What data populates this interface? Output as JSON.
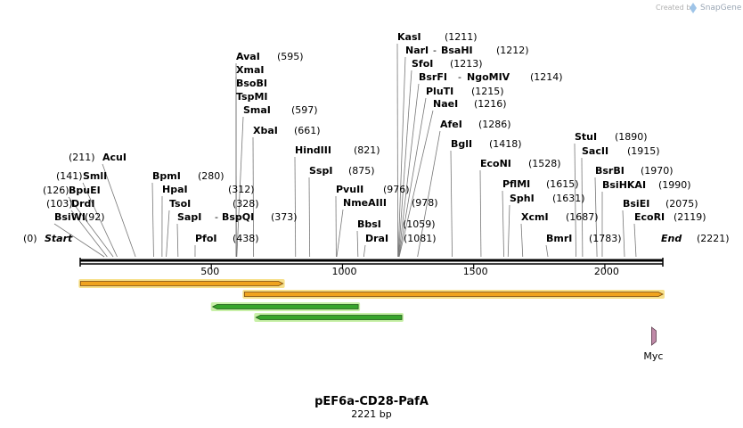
{
  "credit": {
    "created_by": "Created by",
    "brand": "SnapGene"
  },
  "map": {
    "name": "pEF6a-CD28-PafA",
    "length_label": "2221 bp",
    "length_bp": 2221,
    "start_label": "Start",
    "start_pos": "(0)",
    "end_label": "End",
    "end_pos": "(2221)",
    "ticks": [
      "500",
      "1000",
      "1500",
      "2000"
    ]
  },
  "sites": [
    {
      "name": "BsiWI",
      "pos": 92,
      "pos_label": "(92)"
    },
    {
      "name": "DrdI",
      "pos": 103,
      "pos_label": "(103)"
    },
    {
      "name": "BpuEI",
      "pos": 126,
      "pos_label": "(126)"
    },
    {
      "name": "SmlI",
      "pos": 141,
      "pos_label": "(141)"
    },
    {
      "name": "AcuI",
      "pos": 211,
      "pos_label": "(211)"
    },
    {
      "name": "BpmI",
      "pos": 280,
      "pos_label": "(280)"
    },
    {
      "name": "HpaI",
      "pos": 312,
      "pos_label": "(312)"
    },
    {
      "name": "TsoI",
      "pos": 328,
      "pos_label": "(328)"
    },
    {
      "name": "SapI",
      "name2": "BspQI",
      "pos": 373,
      "pos_label": "(373)"
    },
    {
      "name": "PfoI",
      "pos": 438,
      "pos_label": "(438)"
    },
    {
      "name": "AvaI",
      "pos": 595,
      "pos_label": "(595)"
    },
    {
      "name": "XmaI",
      "pos": 595,
      "pos_label": ""
    },
    {
      "name": "BsoBI",
      "pos": 595,
      "pos_label": ""
    },
    {
      "name": "TspMI",
      "pos": 595,
      "pos_label": ""
    },
    {
      "name": "SmaI",
      "pos": 597,
      "pos_label": "(597)"
    },
    {
      "name": "XbaI",
      "pos": 661,
      "pos_label": "(661)"
    },
    {
      "name": "HindIII",
      "pos": 821,
      "pos_label": "(821)"
    },
    {
      "name": "SspI",
      "pos": 875,
      "pos_label": "(875)"
    },
    {
      "name": "PvuII",
      "pos": 976,
      "pos_label": "(976)"
    },
    {
      "name": "NmeAIII",
      "pos": 978,
      "pos_label": "(978)"
    },
    {
      "name": "BbsI",
      "pos": 1059,
      "pos_label": "(1059)"
    },
    {
      "name": "DraI",
      "pos": 1081,
      "pos_label": "(1081)"
    },
    {
      "name": "KasI",
      "pos": 1211,
      "pos_label": "(1211)"
    },
    {
      "name": "NarI",
      "name2": "BsaHI",
      "pos": 1212,
      "pos_label": "(1212)"
    },
    {
      "name": "SfoI",
      "pos": 1213,
      "pos_label": "(1213)"
    },
    {
      "name": "BsrFI",
      "name2": "NgoMIV",
      "pos": 1214,
      "pos_label": "(1214)"
    },
    {
      "name": "PluTI",
      "pos": 1215,
      "pos_label": "(1215)"
    },
    {
      "name": "NaeI",
      "pos": 1216,
      "pos_label": "(1216)"
    },
    {
      "name": "AfeI",
      "pos": 1286,
      "pos_label": "(1286)"
    },
    {
      "name": "BglI",
      "pos": 1418,
      "pos_label": "(1418)"
    },
    {
      "name": "EcoNI",
      "pos": 1528,
      "pos_label": "(1528)"
    },
    {
      "name": "PflMI",
      "pos": 1615,
      "pos_label": "(1615)"
    },
    {
      "name": "SphI",
      "pos": 1631,
      "pos_label": "(1631)"
    },
    {
      "name": "XcmI",
      "pos": 1687,
      "pos_label": "(1687)"
    },
    {
      "name": "BmrI",
      "pos": 1783,
      "pos_label": "(1783)"
    },
    {
      "name": "StuI",
      "pos": 1890,
      "pos_label": "(1890)"
    },
    {
      "name": "SacII",
      "pos": 1915,
      "pos_label": "(1915)"
    },
    {
      "name": "BsrBI",
      "pos": 1970,
      "pos_label": "(1970)"
    },
    {
      "name": "BsiHKAI",
      "pos": 1990,
      "pos_label": "(1990)"
    },
    {
      "name": "BsiEI",
      "pos": 2075,
      "pos_label": "(2075)"
    },
    {
      "name": "EcoRI",
      "pos": 2119,
      "pos_label": "(2119)"
    }
  ],
  "features": [
    {
      "type": "bar",
      "color": "#f0a31e",
      "edge": "#7a4a10",
      "glow": "#f7e08a",
      "start": 1,
      "end": 773,
      "arrow": "right"
    },
    {
      "type": "bar",
      "color": "#f0a31e",
      "edge": "#7a4a10",
      "glow": "#f7e08a",
      "start": 626,
      "end": 2221,
      "arrow": "right"
    },
    {
      "type": "bar",
      "color": "#37a52b",
      "edge": "#1f5a17",
      "glow": "#c8f0a8",
      "start": 505,
      "end": 1060,
      "arrow": "left"
    },
    {
      "type": "bar",
      "color": "#37a52b",
      "edge": "#1f5a17",
      "glow": "#c8f0a8",
      "start": 670,
      "end": 1226,
      "arrow": "left"
    },
    {
      "type": "marker",
      "name": "Myc",
      "color": "#c08aa8",
      "edge": "#5a3a4a",
      "start": 2175,
      "end": 2205
    }
  ]
}
